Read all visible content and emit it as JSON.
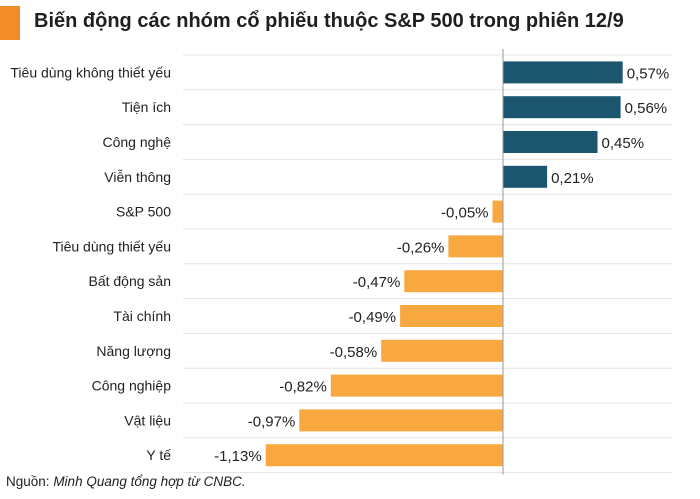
{
  "title": "Biến động các nhóm cổ phiếu thuộc S&P 500 trong phiên 12/9",
  "source_label": "Nguồn:",
  "source_text": "Minh Quang tổng hợp từ CNBC.",
  "colors": {
    "positive": "#1c566e",
    "negative": "#f8a83f",
    "accent": "#f28c28"
  },
  "chart_data": {
    "type": "bar",
    "orientation": "horizontal",
    "categories": [
      "Tiêu dùng không thiết yếu",
      "Tiện ích",
      "Công nghệ",
      "Viễn thông",
      "S&P 500",
      "Tiêu dùng thiết yếu",
      "Bất động sản",
      "Tài chính",
      "Năng lượng",
      "Công nghiệp",
      "Vật liệu",
      "Y tế"
    ],
    "values": [
      0.57,
      0.56,
      0.45,
      0.21,
      -0.05,
      -0.26,
      -0.47,
      -0.49,
      -0.58,
      -0.82,
      -0.97,
      -1.13
    ],
    "value_labels": [
      "0,57%",
      "0,56%",
      "0,45%",
      "0,21%",
      "-0,05%",
      "-0,26%",
      "-0,47%",
      "-0,49%",
      "-0,58%",
      "-0,82%",
      "-0,97%",
      "-1,13%"
    ],
    "xlim": [
      -1.13,
      0.57
    ],
    "grid": true
  }
}
